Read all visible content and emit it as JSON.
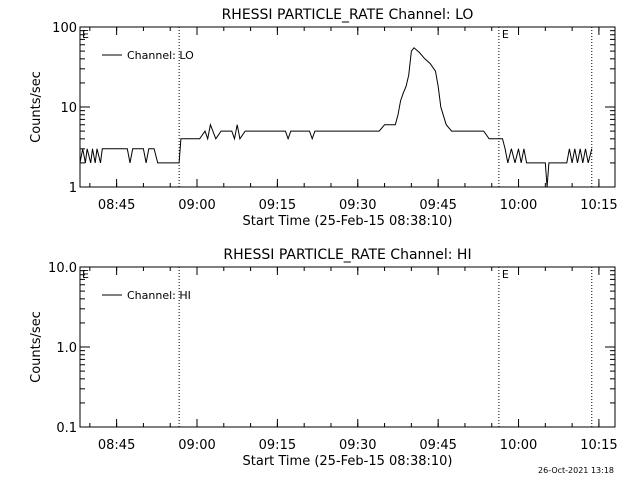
{
  "chart_data": [
    {
      "type": "line",
      "title": "RHESSI PARTICLE_RATE Channel: LO",
      "xlabel": "Start Time (25-Feb-15 08:38:10)",
      "ylabel": "Counts/sec",
      "y_scale": "log",
      "ylim": [
        1,
        100
      ],
      "xlim": [
        "08:38:10",
        "10:18:00"
      ],
      "x_tick_labels": [
        "08:45",
        "09:00",
        "09:15",
        "09:30",
        "09:45",
        "10:00",
        "10:15"
      ],
      "y_tick_labels": [
        "1",
        "10",
        "100"
      ],
      "legend": {
        "position": "top-left",
        "entries": [
          "Channel: LO"
        ]
      },
      "event_markers": [
        {
          "time": "08:56:40",
          "label": ""
        },
        {
          "time": "09:56:20",
          "label": "E"
        },
        {
          "time": "10:13:40",
          "label": ""
        }
      ],
      "corner_marker": "E",
      "series": [
        {
          "name": "Channel: LO",
          "x": [
            "08:38:10",
            "08:38:40",
            "08:39:10",
            "08:39:30",
            "08:40:10",
            "08:40:30",
            "08:41:00",
            "08:41:20",
            "08:42:00",
            "08:42:20",
            "08:43:00",
            "08:43:30",
            "08:44:00",
            "08:44:30",
            "08:45:00",
            "08:46:00",
            "08:47:00",
            "08:47:30",
            "08:48:00",
            "08:49:00",
            "08:50:00",
            "08:50:30",
            "08:51:00",
            "08:51:30",
            "08:52:00",
            "08:52:40",
            "08:53:30",
            "08:54:30",
            "08:55:30",
            "08:56:40",
            "08:57:00",
            "08:58:00",
            "08:59:30",
            "09:00:30",
            "09:01:30",
            "09:02:00",
            "09:02:30",
            "09:03:30",
            "09:04:30",
            "09:05:30",
            "09:06:30",
            "09:07:00",
            "09:07:30",
            "09:08:00",
            "09:09:00",
            "09:10:30",
            "09:12:00",
            "09:13:30",
            "09:15:00",
            "09:16:30",
            "09:17:00",
            "09:17:30",
            "09:18:30",
            "09:20:00",
            "09:21:00",
            "09:21:30",
            "09:22:00",
            "09:23:00",
            "09:24:30",
            "09:26:00",
            "09:27:30",
            "09:29:00",
            "09:30:00",
            "09:31:00",
            "09:32:00",
            "09:33:00",
            "09:34:00",
            "09:35:00",
            "09:36:00",
            "09:37:00",
            "09:37:30",
            "09:38:00",
            "09:38:30",
            "09:39:00",
            "09:39:30",
            "09:40:00",
            "09:40:30",
            "09:41:30",
            "09:42:30",
            "09:43:30",
            "09:44:30",
            "09:45:00",
            "09:45:30",
            "09:46:30",
            "09:47:30",
            "09:48:30",
            "09:49:30",
            "09:50:30",
            "09:51:30",
            "09:52:30",
            "09:53:30",
            "09:54:30",
            "09:55:30",
            "09:56:20",
            "09:57:00",
            "09:57:30",
            "09:58:00",
            "09:58:40",
            "09:59:20",
            "10:00:00",
            "10:00:30",
            "10:01:00",
            "10:01:30",
            "10:02:00",
            "10:03:00",
            "10:04:00",
            "10:05:00",
            "10:05:20",
            "10:05:40",
            "10:06:00",
            "10:07:00",
            "10:08:00",
            "10:09:00",
            "10:09:30",
            "10:10:00",
            "10:10:30",
            "10:11:00",
            "10:11:30",
            "10:12:00",
            "10:12:30",
            "10:13:00",
            "10:13:40"
          ],
          "y": [
            2,
            3,
            2,
            3,
            2,
            3,
            2,
            3,
            2,
            3,
            3,
            3,
            3,
            3,
            3,
            3,
            3,
            2,
            3,
            3,
            3,
            2,
            3,
            3,
            3,
            2,
            2,
            2,
            2,
            2,
            4,
            4,
            4,
            4,
            5,
            4,
            6,
            4,
            5,
            5,
            5,
            4,
            6,
            4,
            5,
            5,
            5,
            5,
            5,
            5,
            4,
            5,
            5,
            5,
            5,
            4,
            5,
            5,
            5,
            5,
            5,
            5,
            5,
            5,
            5,
            5,
            5,
            6,
            6,
            6,
            8,
            12,
            15,
            18,
            25,
            50,
            55,
            48,
            40,
            35,
            28,
            18,
            10,
            6,
            5,
            5,
            5,
            5,
            5,
            5,
            5,
            4,
            4,
            4,
            4,
            3,
            2,
            3,
            2,
            3,
            2,
            3,
            2,
            2,
            2,
            2,
            2,
            1,
            2,
            2,
            2,
            2,
            2,
            3,
            2,
            3,
            2,
            3,
            2,
            3,
            2,
            3
          ]
        }
      ]
    },
    {
      "type": "line",
      "title": "RHESSI PARTICLE_RATE Channel: HI",
      "xlabel": "Start Time (25-Feb-15 08:38:10)",
      "ylabel": "Counts/sec",
      "y_scale": "log",
      "ylim": [
        0.1,
        10
      ],
      "xlim": [
        "08:38:10",
        "10:18:00"
      ],
      "x_tick_labels": [
        "08:45",
        "09:00",
        "09:15",
        "09:30",
        "09:45",
        "10:00",
        "10:15"
      ],
      "y_tick_labels": [
        "0.1",
        "1.0",
        "10.0"
      ],
      "legend": {
        "position": "top-left",
        "entries": [
          "Channel: HI"
        ]
      },
      "event_markers": [
        {
          "time": "08:56:40",
          "label": ""
        },
        {
          "time": "09:56:20",
          "label": "E"
        },
        {
          "time": "10:13:40",
          "label": ""
        }
      ],
      "corner_marker": "E",
      "series": [
        {
          "name": "Channel: HI",
          "x": [],
          "y": []
        }
      ]
    }
  ],
  "footer": {
    "timestamp": "26-Oct-2021 13:18"
  }
}
